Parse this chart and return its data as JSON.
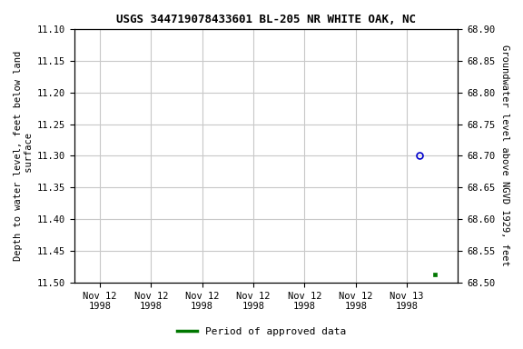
{
  "title": "USGS 344719078433601 BL-205 NR WHITE OAK, NC",
  "ylabel_left": "Depth to water level, feet below land\n surface",
  "ylabel_right": "Groundwater level above NGVD 1929, feet",
  "ylim_left": [
    11.5,
    11.1
  ],
  "ylim_right": [
    68.5,
    68.9
  ],
  "yticks_left": [
    11.1,
    11.15,
    11.2,
    11.25,
    11.3,
    11.35,
    11.4,
    11.45,
    11.5
  ],
  "yticks_right": [
    68.9,
    68.85,
    68.8,
    68.75,
    68.7,
    68.65,
    68.6,
    68.55,
    68.5
  ],
  "data_point_blue": {
    "x": 6.25,
    "value": 11.3,
    "marker": "o",
    "color": "#0000cc",
    "size": 5
  },
  "data_point_green": {
    "x": 6.55,
    "value": 11.488,
    "marker": "s",
    "color": "#007700",
    "size": 3.5
  },
  "xtick_positions": [
    0,
    1,
    2,
    3,
    4,
    5,
    6
  ],
  "xtick_labels": [
    "Nov 12\n1998",
    "Nov 12\n1998",
    "Nov 12\n1998",
    "Nov 12\n1998",
    "Nov 12\n1998",
    "Nov 12\n1998",
    "Nov 13\n1998"
  ],
  "xlim": [
    -0.5,
    7.0
  ],
  "grid_color": "#c8c8c8",
  "bg_color": "#ffffff",
  "legend_label": "Period of approved data",
  "legend_color": "#007700",
  "title_fontsize": 9,
  "tick_fontsize": 7.5,
  "label_fontsize": 7.5
}
